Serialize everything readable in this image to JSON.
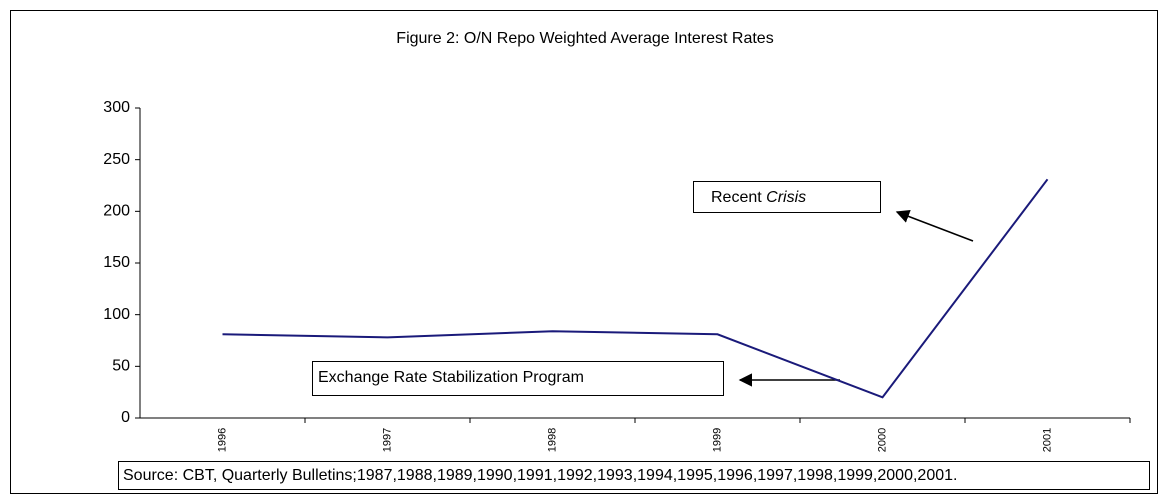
{
  "chart_data": {
    "type": "line",
    "title": "Figure 2: O/N Repo Weighted Average Interest Rates",
    "categories": [
      "1996",
      "1997",
      "1998",
      "1999",
      "2000",
      "2001"
    ],
    "series": [
      {
        "name": "O/N Repo Weighted Average Interest Rates",
        "color": "#1a1a7a",
        "values": [
          81,
          78,
          84,
          81,
          20,
          231
        ]
      }
    ],
    "ylim": [
      0,
      300
    ],
    "yticks": [
      0,
      50,
      100,
      150,
      200,
      250,
      300
    ],
    "grid": false,
    "legend": false,
    "annotations": [
      {
        "text": "Recent",
        "emphasis": "Crisis"
      },
      {
        "text": "Exchange Rate Stabilization Program"
      }
    ],
    "source": "Source: CBT, Quarterly Bulletins;1987,1988,1989,1990,1991,1992,1993,1994,1995,1996,1997,1998,1999,2000,2001."
  }
}
